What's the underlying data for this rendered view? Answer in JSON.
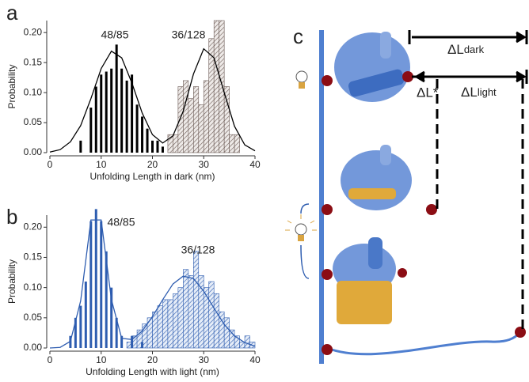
{
  "chart_data": [
    {
      "type": "histogram",
      "panel": "a",
      "xlabel": "Unfolding Length in dark (nm)",
      "ylabel": "Probability",
      "xlim": [
        0,
        40
      ],
      "xticks": [
        0,
        10,
        20,
        30,
        40
      ],
      "ylim": [
        0,
        0.22
      ],
      "yticks": [
        {
          "value": 0,
          "label": "0.00"
        },
        {
          "value": 0.05,
          "label": "0.05"
        },
        {
          "value": 0.1,
          "label": "0.10"
        },
        {
          "value": 0.15,
          "label": "0.15"
        },
        {
          "value": 0.2,
          "label": "0.20"
        }
      ],
      "annotations": [
        "48/85",
        "36/128"
      ],
      "color": "#000000",
      "hatch_color": "#6b5a55",
      "bars": {
        "x": [
          6,
          8,
          9,
          10,
          11,
          12,
          13,
          14,
          15,
          16,
          17,
          18,
          19,
          20,
          21,
          22
        ],
        "values": [
          0.02,
          0.075,
          0.11,
          0.13,
          0.135,
          0.14,
          0.18,
          0.14,
          0.12,
          0.13,
          0.08,
          0.06,
          0.04,
          0.02,
          0.02,
          0.01
        ]
      },
      "hist": {
        "bins": [
          23,
          24,
          25,
          26,
          27,
          28,
          29,
          30,
          31,
          32,
          33,
          34,
          35,
          36,
          37
        ],
        "values": [
          0.03,
          0.03,
          0.11,
          0.12,
          0.09,
          0.11,
          0.08,
          0.12,
          0.19,
          0.22,
          0.22,
          0.11,
          0.03,
          0.03
        ]
      },
      "fit": {
        "x": [
          0,
          2,
          4,
          6,
          8,
          10,
          12,
          14,
          16,
          18,
          20,
          22,
          24,
          26,
          28,
          30,
          32,
          34,
          36,
          38,
          40
        ],
        "values": [
          0.001,
          0.005,
          0.018,
          0.045,
          0.09,
          0.14,
          0.169,
          0.158,
          0.116,
          0.066,
          0.03,
          0.016,
          0.028,
          0.069,
          0.131,
          0.173,
          0.158,
          0.1,
          0.044,
          0.013,
          0.003
        ]
      }
    },
    {
      "type": "histogram",
      "panel": "b",
      "xlabel": "Unfolding Length with light (nm)",
      "ylabel": "Probability",
      "xlim": [
        0,
        40
      ],
      "xticks": [
        0,
        10,
        20,
        30,
        40
      ],
      "ylim": [
        0,
        0.22
      ],
      "yticks": [
        {
          "value": 0,
          "label": "0.00"
        },
        {
          "value": 0.05,
          "label": "0.05"
        },
        {
          "value": 0.1,
          "label": "0.10"
        },
        {
          "value": 0.15,
          "label": "0.15"
        },
        {
          "value": 0.2,
          "label": "0.20"
        }
      ],
      "annotations": [
        "48/85",
        "36/128"
      ],
      "color": "#2e5db0",
      "hatch_color": "#2e5db0",
      "bars": {
        "x": [
          4,
          5,
          6,
          7,
          8,
          9,
          10,
          11,
          12,
          13,
          14,
          16,
          18
        ],
        "values": [
          0.02,
          0.05,
          0.07,
          0.11,
          0.21,
          0.23,
          0.21,
          0.16,
          0.1,
          0.05,
          0.02,
          0.02,
          0.01
        ]
      },
      "hist": {
        "bins": [
          15,
          16,
          17,
          18,
          19,
          20,
          21,
          22,
          23,
          24,
          25,
          26,
          27,
          28,
          29,
          30,
          31,
          32,
          33,
          34,
          35,
          36,
          37,
          38,
          39,
          40
        ],
        "values": [
          0.01,
          0.02,
          0.03,
          0.04,
          0.05,
          0.06,
          0.07,
          0.08,
          0.08,
          0.09,
          0.1,
          0.13,
          0.12,
          0.16,
          0.12,
          0.1,
          0.11,
          0.09,
          0.06,
          0.05,
          0.03,
          0.02,
          0.01,
          0.02,
          0.01
        ]
      },
      "fit": {
        "x": [
          0,
          2,
          4,
          6,
          8,
          10,
          12,
          14,
          16,
          18,
          20,
          22,
          24,
          26,
          28,
          30,
          32,
          34,
          36,
          38,
          40
        ],
        "values": [
          0,
          0.001,
          0.011,
          0.078,
          0.212,
          0.212,
          0.08,
          0.016,
          0.014,
          0.028,
          0.052,
          0.08,
          0.106,
          0.119,
          0.115,
          0.094,
          0.066,
          0.039,
          0.02,
          0.009,
          0.003
        ]
      }
    }
  ],
  "diagram": {
    "panel": "c",
    "dark": {
      "symbol": "ΔL",
      "subscript": "dark"
    },
    "star": "ΔL*",
    "light": {
      "symbol": "ΔL",
      "subscript": "light"
    }
  }
}
